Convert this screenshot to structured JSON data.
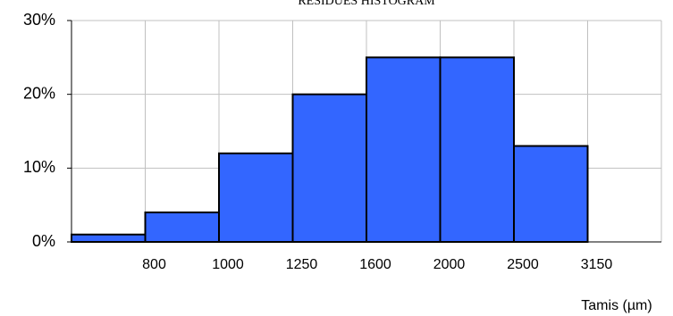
{
  "chart_data": {
    "type": "bar",
    "title": "RESIDUES HISTOGRAM",
    "x_label": "Tamis (µm)",
    "categories": [
      "800",
      "1000",
      "1250",
      "1600",
      "2000",
      "2500",
      "3150"
    ],
    "values": [
      1,
      4,
      12,
      20,
      25,
      25,
      13
    ],
    "color": "#3366ff",
    "ylim": [
      0,
      30
    ],
    "yticks": [
      {
        "value": 0,
        "label": "0%"
      },
      {
        "value": 10,
        "label": "10%"
      },
      {
        "value": 20,
        "label": "20%"
      },
      {
        "value": 30,
        "label": "30%"
      }
    ],
    "grid": true
  }
}
